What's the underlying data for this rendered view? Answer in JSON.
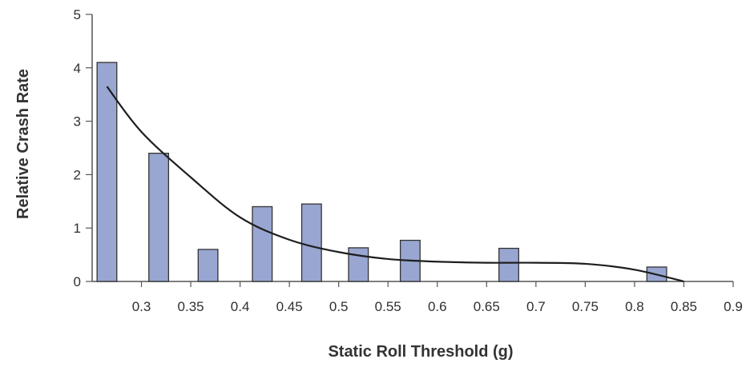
{
  "chart_data": {
    "type": "bar",
    "xlabel": "Static Roll Threshold (g)",
    "ylabel": "Relative Crash Rate",
    "xlim": [
      0.25,
      0.9
    ],
    "ylim": [
      0,
      5
    ],
    "x_ticks": [
      0.3,
      0.35,
      0.4,
      0.45,
      0.5,
      0.55,
      0.6,
      0.65,
      0.7,
      0.75,
      0.8,
      0.85,
      0.9
    ],
    "x_tick_labels": [
      "0.3",
      "0.35",
      "0.4",
      "0.45",
      "0.5",
      "0.55",
      "0.6",
      "0.65",
      "0.7",
      "0.75",
      "0.8",
      "0.85",
      "0.9"
    ],
    "y_ticks": [
      0,
      1,
      2,
      3,
      4,
      5
    ],
    "y_tick_labels": [
      "0",
      "1",
      "2",
      "3",
      "4",
      "5"
    ],
    "bar_width": 0.02,
    "series": [
      {
        "type": "bar",
        "x": [
          0.265,
          0.3175,
          0.3675,
          0.4225,
          0.4725,
          0.52,
          0.5725,
          0.6725,
          0.8225
        ],
        "values": [
          4.1,
          2.4,
          0.6,
          1.4,
          1.45,
          0.63,
          0.77,
          0.62,
          0.27
        ]
      },
      {
        "type": "line",
        "x": [
          0.265,
          0.3,
          0.35,
          0.4,
          0.45,
          0.5,
          0.55,
          0.6,
          0.65,
          0.7,
          0.75,
          0.8,
          0.85
        ],
        "values": [
          3.65,
          2.8,
          1.95,
          1.2,
          0.78,
          0.55,
          0.42,
          0.37,
          0.35,
          0.35,
          0.33,
          0.22,
          0.0
        ]
      }
    ],
    "colors": {
      "bar_fill": "#98a6d1",
      "bar_stroke": "#333333",
      "line": "#1e1e1e"
    },
    "grid": false,
    "legend": "none"
  }
}
